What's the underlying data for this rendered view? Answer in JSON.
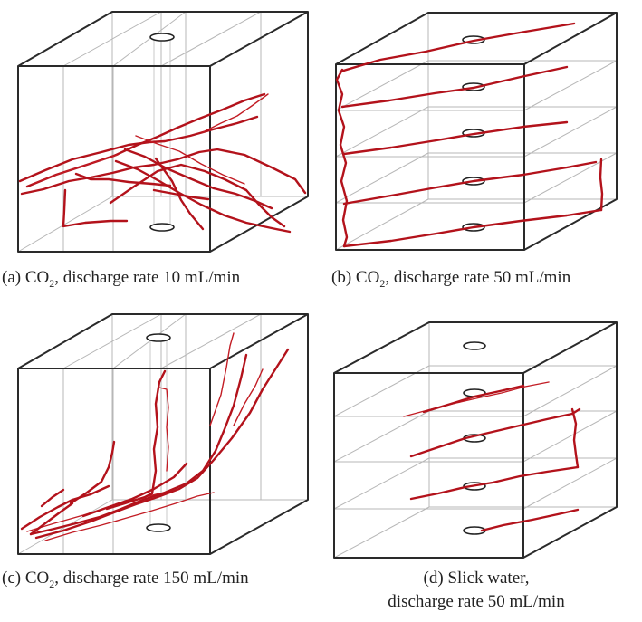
{
  "figure": {
    "panels": [
      {
        "id": "a",
        "label": "(a) CO",
        "subscript": "2",
        "rest": ", discharge rate 10 mL/min",
        "line2": ""
      },
      {
        "id": "b",
        "label": "(b) CO",
        "subscript": "2",
        "rest": ", discharge rate 50 mL/min",
        "line2": ""
      },
      {
        "id": "c",
        "label": "(c) CO",
        "subscript": "2",
        "rest": ", discharge rate 150 mL/min",
        "line2": ""
      },
      {
        "id": "d",
        "label": "(d) Slick water,",
        "subscript": "",
        "rest": "",
        "line2": "discharge rate 50 mL/min"
      }
    ],
    "colors": {
      "fracture": "#b3121b",
      "edge": "#2a2a2a",
      "grid": "#b7b7b7"
    }
  }
}
